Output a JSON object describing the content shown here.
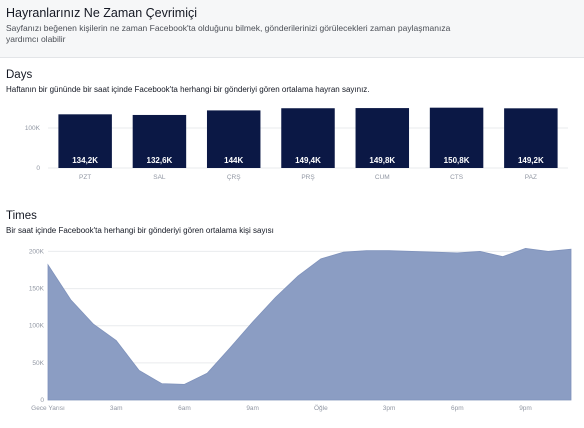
{
  "header": {
    "title": "Hayranlarınız Ne Zaman Çevrimiçi",
    "subtitle": "Sayfanızı beğenen kişilerin ne zaman Facebook'ta olduğunu bilmek, gönderilerinizi görülecekleri zaman paylaşmanıza yardımcı olabilir"
  },
  "chart_data": [
    {
      "type": "bar",
      "title": "Days",
      "subtitle": "Haftanın bir gününde bir saat içinde Facebook'ta herhangi bir gönderiyi gören ortalama hayran sayınız.",
      "categories": [
        "PZT",
        "SAL",
        "ÇRŞ",
        "PRŞ",
        "CUM",
        "CTS",
        "PAZ"
      ],
      "values": [
        134200,
        132600,
        144000,
        149400,
        149800,
        150800,
        149200
      ],
      "data_labels": [
        "134,2K",
        "132,6K",
        "144K",
        "149,4K",
        "149,8K",
        "150,8K",
        "149,2K"
      ],
      "y_ticks": [
        0,
        100000
      ],
      "y_tick_labels": [
        "0",
        "100K"
      ],
      "ylim": [
        0,
        160000
      ],
      "grid": true,
      "color": "#0b1845"
    },
    {
      "type": "area",
      "title": "Times",
      "subtitle": "Bir saat içinde Facebook'ta herhangi bir gönderiyi gören ortalama kişi sayısı",
      "x": [
        0,
        1,
        2,
        3,
        4,
        5,
        6,
        7,
        8,
        9,
        10,
        11,
        12,
        13,
        14,
        15,
        16,
        17,
        18,
        19,
        20,
        21,
        22,
        23
      ],
      "values": [
        182000,
        135000,
        102000,
        80000,
        40000,
        22000,
        21000,
        36000,
        70000,
        105000,
        138000,
        167000,
        190000,
        199000,
        201000,
        201000,
        200000,
        199000,
        198000,
        200000,
        193000,
        204000,
        200000,
        203000
      ],
      "x_tick_positions": [
        0,
        3,
        6,
        9,
        12,
        15,
        18,
        21
      ],
      "x_tick_labels": [
        "Gece Yarısı",
        "3am",
        "6am",
        "9am",
        "Öğle",
        "3pm",
        "6pm",
        "9pm"
      ],
      "y_ticks": [
        0,
        50000,
        100000,
        150000,
        200000
      ],
      "y_tick_labels": [
        "0",
        "50K",
        "100K",
        "150K",
        "200K"
      ],
      "ylim": [
        0,
        210000
      ],
      "xlim": [
        0,
        23
      ],
      "grid": true,
      "color": "#8b9dc3"
    }
  ]
}
